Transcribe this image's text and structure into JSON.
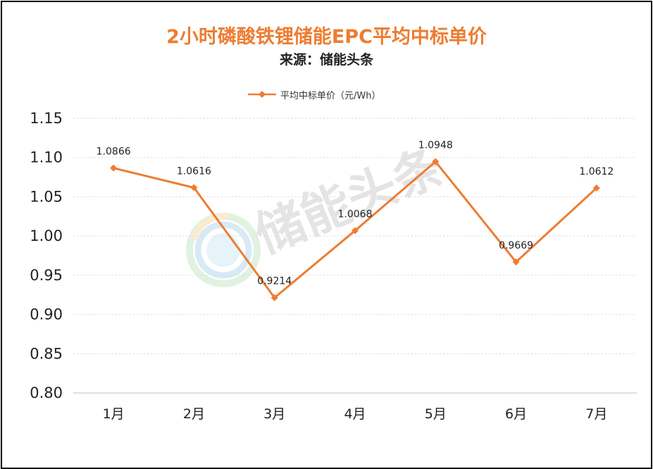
{
  "colors": {
    "series": "#ED7D31",
    "grid": "#D9D9D9",
    "border": "#000000"
  },
  "chart_data": {
    "type": "line",
    "title": "2小时磷酸铁锂储能EPC平均中标单价",
    "subtitle": "来源：储能头条",
    "watermark": "储能头条",
    "categories": [
      "1月",
      "2月",
      "3月",
      "4月",
      "5月",
      "6月",
      "7月"
    ],
    "series": [
      {
        "name": "平均中标单价（元/Wh）",
        "values": [
          1.0866,
          1.0616,
          0.9214,
          1.0068,
          1.0948,
          0.9669,
          1.0612
        ],
        "labels": [
          "1.0866",
          "1.0616",
          "0.9214",
          "1.0068",
          "1.0948",
          "0.9669",
          "1.0612"
        ]
      }
    ],
    "ylim": [
      0.8,
      1.15
    ],
    "yticks": [
      "0.80",
      "0.85",
      "0.90",
      "0.95",
      "1.00",
      "1.05",
      "1.10",
      "1.15"
    ],
    "grid": true,
    "legend_position": "top-center",
    "marker": "diamond"
  }
}
